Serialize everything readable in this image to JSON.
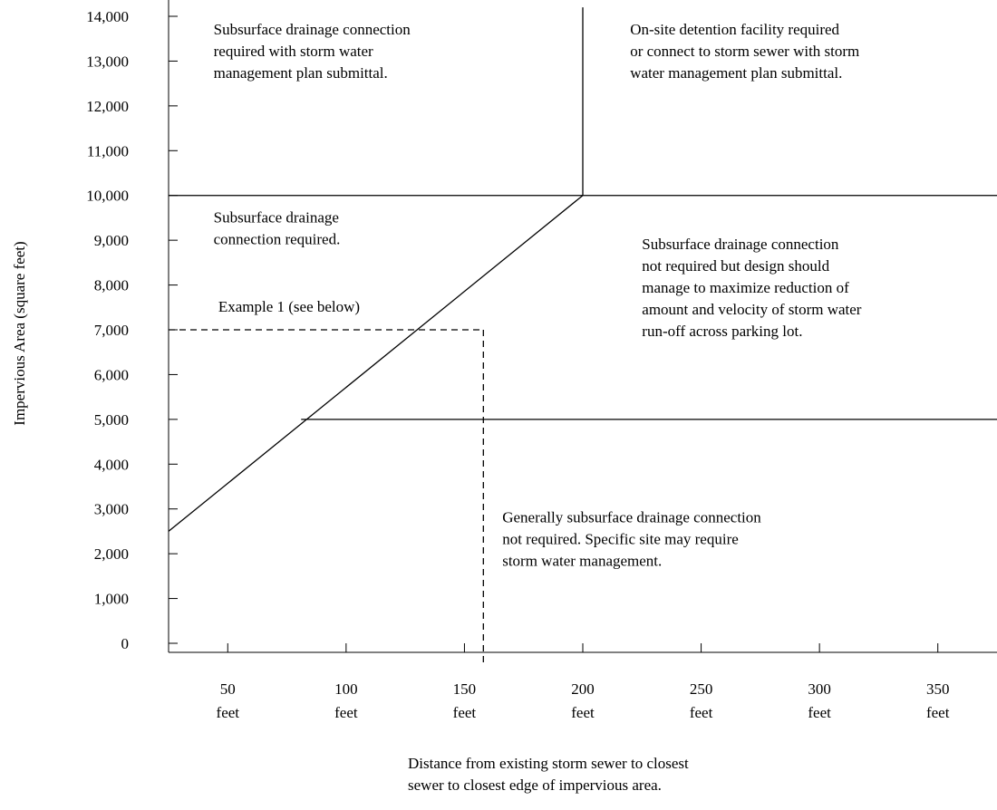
{
  "chart_data": {
    "type": "line",
    "title": "",
    "xlabel_lines": [
      "Distance from existing storm sewer to closest",
      "sewer to closest edge of impervious area."
    ],
    "ylabel": "Impervious Area (square feet)",
    "xlim": [
      25,
      375
    ],
    "ylim": [
      0,
      14000
    ],
    "y_ticks": [
      {
        "value": 0,
        "label": "0"
      },
      {
        "value": 1000,
        "label": "1,000"
      },
      {
        "value": 2000,
        "label": "2,000"
      },
      {
        "value": 3000,
        "label": "3,000"
      },
      {
        "value": 4000,
        "label": "4,000"
      },
      {
        "value": 5000,
        "label": "5,000"
      },
      {
        "value": 6000,
        "label": "6,000"
      },
      {
        "value": 7000,
        "label": "7,000"
      },
      {
        "value": 8000,
        "label": "8,000"
      },
      {
        "value": 9000,
        "label": "9,000"
      },
      {
        "value": 10000,
        "label": "10,000"
      },
      {
        "value": 11000,
        "label": "11,000"
      },
      {
        "value": 12000,
        "label": "12,000"
      },
      {
        "value": 13000,
        "label": "13,000"
      },
      {
        "value": 14000,
        "label": "14,000"
      }
    ],
    "x_ticks": [
      {
        "value": 50,
        "label": "50",
        "unit": "feet"
      },
      {
        "value": 100,
        "label": "100",
        "unit": "feet"
      },
      {
        "value": 150,
        "label": "150",
        "unit": "feet"
      },
      {
        "value": 200,
        "label": "200",
        "unit": "feet"
      },
      {
        "value": 250,
        "label": "250",
        "unit": "feet"
      },
      {
        "value": 300,
        "label": "300",
        "unit": "feet"
      },
      {
        "value": 350,
        "label": "350",
        "unit": "feet"
      }
    ],
    "boundaries": [
      {
        "id": "diagonal-boundary-line",
        "style": "solid",
        "points": [
          [
            25,
            2500
          ],
          [
            200,
            10000
          ]
        ]
      },
      {
        "id": "vertical-boundary-line",
        "style": "solid",
        "points": [
          [
            200,
            10000
          ],
          [
            200,
            14200
          ]
        ]
      },
      {
        "id": "horizontal-10000-line",
        "style": "solid",
        "points": [
          [
            25,
            10000
          ],
          [
            375,
            10000
          ]
        ]
      },
      {
        "id": "horizontal-5000-line",
        "style": "solid",
        "points": [
          [
            81,
            5000
          ],
          [
            375,
            5000
          ]
        ]
      },
      {
        "id": "example-horizontal-dashed",
        "style": "dashed",
        "points": [
          [
            25,
            7000
          ],
          [
            158,
            7000
          ]
        ]
      },
      {
        "id": "example-vertical-dashed",
        "style": "dashed",
        "points": [
          [
            158,
            7000
          ],
          [
            158,
            -500
          ]
        ]
      }
    ],
    "annotations": [
      {
        "id": "region-top-left",
        "lines": [
          "Subsurface drainage connection",
          "required with storm water",
          "management plan submittal."
        ],
        "x": 44,
        "y": 13600
      },
      {
        "id": "region-top-right",
        "lines": [
          "On-site detention facility required",
          "or connect to storm sewer with storm",
          "water management plan submittal."
        ],
        "x": 220,
        "y": 13600
      },
      {
        "id": "region-middle-left",
        "lines": [
          "Subsurface drainage",
          "connection required."
        ],
        "x": 44,
        "y": 9400
      },
      {
        "id": "region-middle-right",
        "lines": [
          "Subsurface drainage connection",
          "not required but design should",
          "manage to maximize reduction of",
          "amount and velocity of storm water",
          "run-off across parking lot."
        ],
        "x": 225,
        "y": 8800
      },
      {
        "id": "example-label",
        "lines": [
          "Example 1 (see below)"
        ],
        "x": 46,
        "y": 7400
      },
      {
        "id": "region-bottom-right",
        "lines": [
          "Generally subsurface drainage connection",
          "not required.  Specific site may require",
          "storm water management."
        ],
        "x": 166,
        "y": 2700
      }
    ]
  }
}
